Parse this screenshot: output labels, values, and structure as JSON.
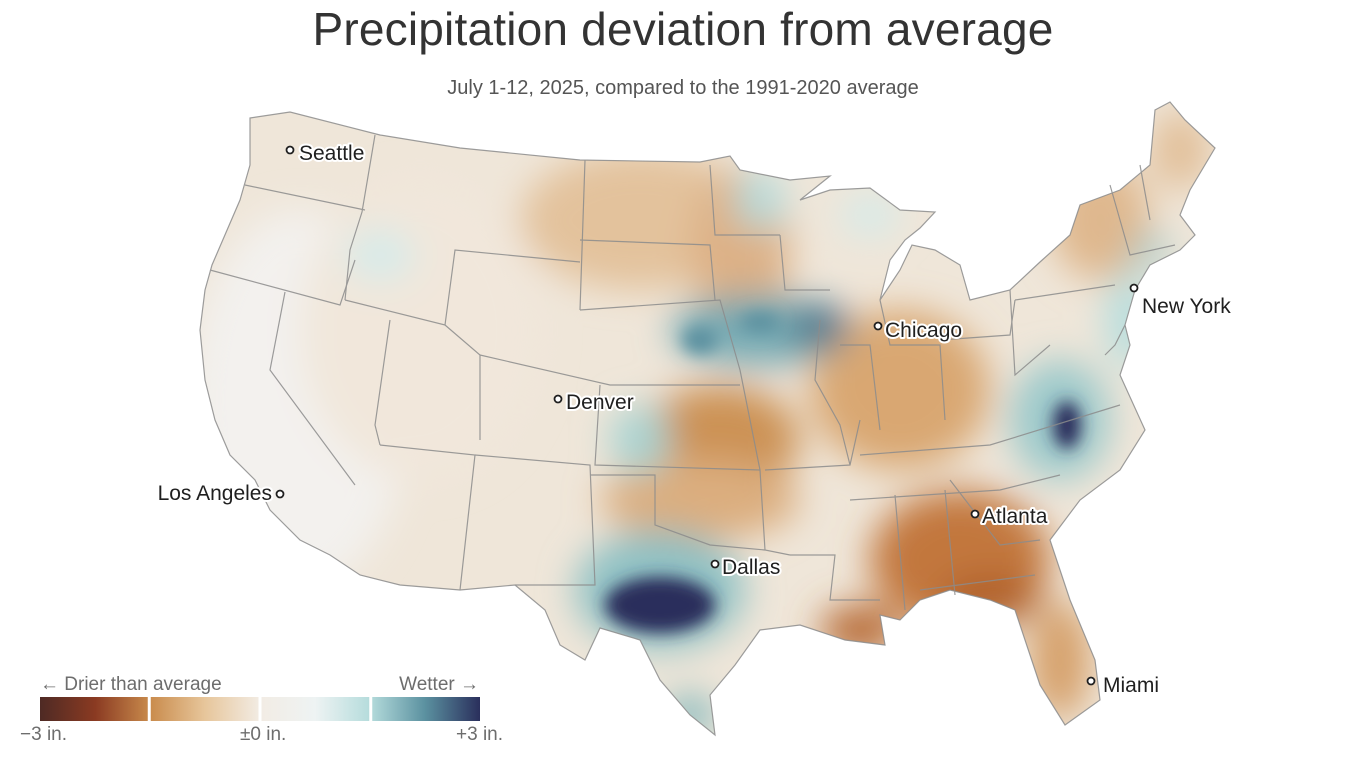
{
  "title": "Precipitation deviation from average",
  "subtitle": "July 1-12, 2025, compared to the 1991-2020 average",
  "map": {
    "type": "choropleth-raster",
    "region": "Contiguous United States",
    "cities": [
      {
        "name": "Seattle"
      },
      {
        "name": "Los Angeles"
      },
      {
        "name": "Denver"
      },
      {
        "name": "Dallas"
      },
      {
        "name": "Chicago"
      },
      {
        "name": "New York"
      },
      {
        "name": "Atlanta"
      },
      {
        "name": "Miami"
      }
    ]
  },
  "legend": {
    "drier_label": "← Drier than average",
    "wetter_label": "Wetter →",
    "min_label": "−3 in.",
    "mid_label": "±0 in.",
    "max_label": "+3 in.",
    "min_value": -3,
    "max_value": 3,
    "unit": "in.",
    "colors": [
      "#4e2a24",
      "#8a3a22",
      "#c98b4c",
      "#e7c69b",
      "#f2ece4",
      "#eef3f3",
      "#b5dcdc",
      "#5b91a0",
      "#2a2f5c"
    ]
  }
}
